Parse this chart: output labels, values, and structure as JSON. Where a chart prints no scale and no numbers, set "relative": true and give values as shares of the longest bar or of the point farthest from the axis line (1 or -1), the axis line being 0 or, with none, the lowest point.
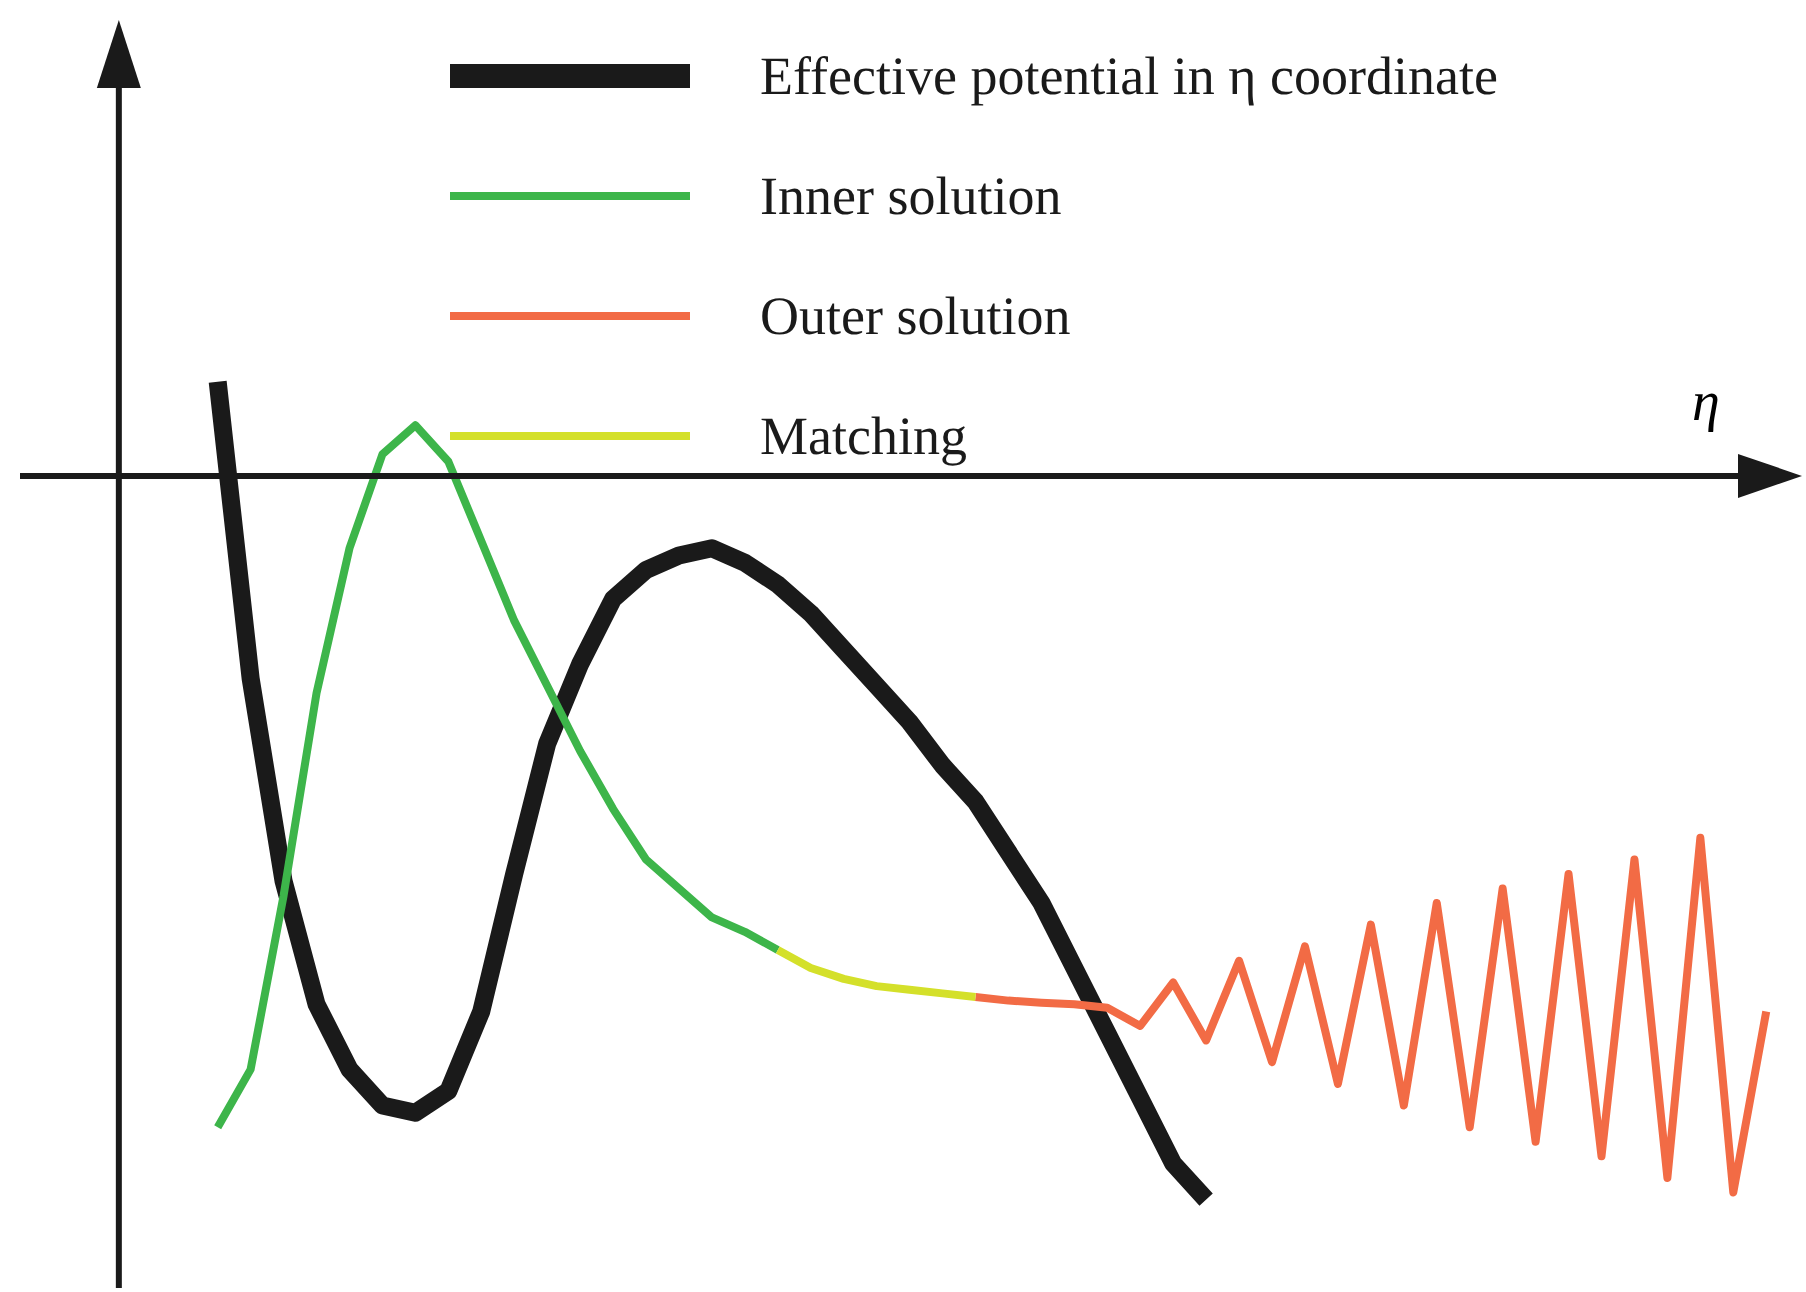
{
  "chart_data": {
    "type": "line",
    "relative": true,
    "xlabel": "η",
    "tick_labels": false,
    "legend": "top",
    "marker": "none",
    "line_style": "solid",
    "categories": [
      null,
      null,
      null,
      null,
      null,
      null,
      null,
      null,
      null,
      null,
      null,
      null,
      null,
      null,
      null,
      null,
      null,
      null,
      null,
      null,
      null,
      null,
      null,
      null,
      null,
      null,
      null,
      null,
      null,
      null,
      null,
      null,
      null,
      null,
      null,
      null,
      null,
      null,
      null,
      null,
      null,
      null,
      null,
      null,
      null,
      null,
      null,
      null
    ],
    "series": [
      {
        "name": "Effective potential in η coordinate",
        "color": "#1a1a1a",
        "values": [
          0.13,
          -0.28,
          -0.56,
          -0.73,
          -0.82,
          -0.87,
          -0.88,
          -0.85,
          -0.74,
          -0.55,
          -0.37,
          -0.26,
          -0.17,
          -0.13,
          -0.11,
          -0.1,
          -0.12,
          -0.15,
          -0.19,
          -0.24,
          -0.29,
          -0.34,
          -0.4,
          -0.45,
          -0.52,
          -0.59,
          -0.68,
          -0.77,
          -0.86,
          -0.95,
          -1,
          null,
          null,
          null,
          null,
          null,
          null,
          null,
          null,
          null,
          null,
          null,
          null,
          null,
          null,
          null,
          null,
          null
        ]
      },
      {
        "name": "Inner solution",
        "color": "#3db54a",
        "values": [
          -0.9,
          -0.82,
          -0.58,
          -0.3,
          -0.1,
          0.03,
          0.07,
          0.02,
          -0.09,
          -0.2,
          -0.29,
          -0.38,
          -0.46,
          -0.53,
          -0.57,
          -0.61,
          -0.63,
          -0.655,
          null,
          null,
          null,
          null,
          null,
          null,
          null,
          null,
          null,
          null,
          null,
          null,
          null,
          null,
          null,
          null,
          null,
          null,
          null,
          null,
          null,
          null,
          null,
          null,
          null,
          null,
          null,
          null,
          null,
          null
        ]
      },
      {
        "name": "Outer solution",
        "color": "#f26b45",
        "values": [
          null,
          null,
          null,
          null,
          null,
          null,
          null,
          null,
          null,
          null,
          null,
          null,
          null,
          null,
          null,
          null,
          null,
          null,
          null,
          null,
          null,
          null,
          null,
          -0.72,
          -0.725,
          -0.728,
          -0.73,
          -0.735,
          -0.76,
          -0.7,
          -0.78,
          -0.67,
          -0.81,
          -0.65,
          -0.84,
          -0.62,
          -0.87,
          -0.59,
          -0.9,
          -0.57,
          -0.92,
          -0.55,
          -0.94,
          -0.53,
          -0.97,
          -0.5,
          -0.99,
          -0.74
        ]
      },
      {
        "name": "Matching",
        "color": "#d4e02a",
        "values": [
          null,
          null,
          null,
          null,
          null,
          null,
          null,
          null,
          null,
          null,
          null,
          null,
          null,
          null,
          null,
          null,
          null,
          -0.655,
          -0.68,
          -0.695,
          -0.705,
          -0.71,
          -0.715,
          -0.72,
          null,
          null,
          null,
          null,
          null,
          null,
          null,
          null,
          null,
          null,
          null,
          null,
          null,
          null,
          null,
          null,
          null,
          null,
          null,
          null,
          null,
          null,
          null,
          null
        ]
      }
    ]
  }
}
